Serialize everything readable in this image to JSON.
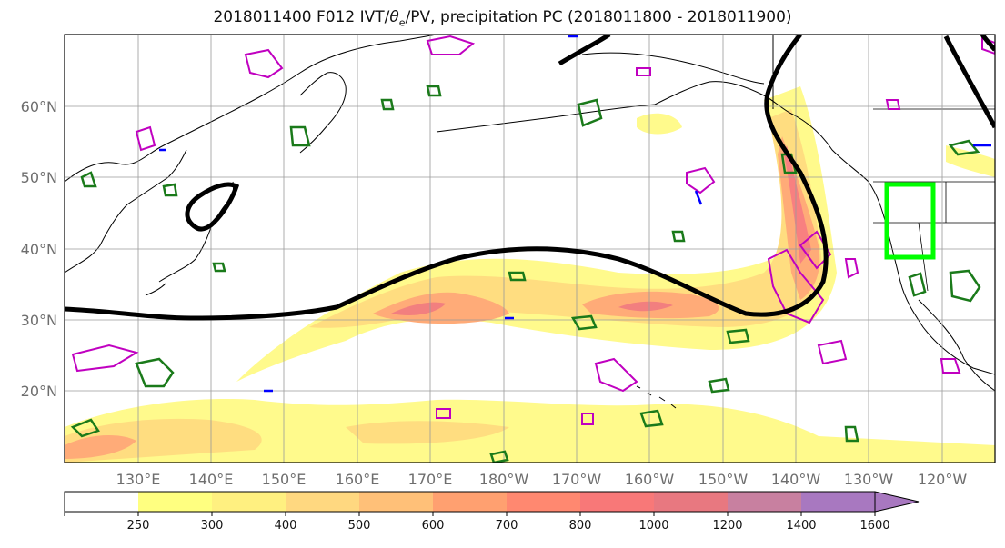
{
  "title": {
    "prefix": "2018011400 F012 IVT/",
    "theta": "θ",
    "theta_sub": "e",
    "suffix": "/PV, precipitation PC (2018011800 - 2018011900)"
  },
  "map": {
    "lat_labels": [
      "60°N",
      "50°N",
      "40°N",
      "30°N",
      "20°N"
    ],
    "lon_labels": [
      "130°E",
      "140°E",
      "150°E",
      "160°E",
      "170°E",
      "180°W",
      "170°W",
      "160°W",
      "150°W",
      "140°W",
      "130°W",
      "120°W"
    ],
    "colors": {
      "ocean": "#ffffff",
      "coast": "#000000",
      "pv_contour": "#000000",
      "theta_contour": "#c000c0",
      "green_contour": "#1a7a1a",
      "blue_contour": "#0000ff",
      "box": "#00ff00"
    }
  },
  "colorbar": {
    "levels": [
      "250",
      "300",
      "400",
      "500",
      "600",
      "700",
      "800",
      "1000",
      "1200",
      "1400",
      "1600"
    ],
    "colors": [
      "#ffffff",
      "#ffff80",
      "#fff080",
      "#ffd880",
      "#ffc078",
      "#ffa070",
      "#ff8870",
      "#f87878",
      "#e87880",
      "#c880a0",
      "#a878c0"
    ]
  }
}
